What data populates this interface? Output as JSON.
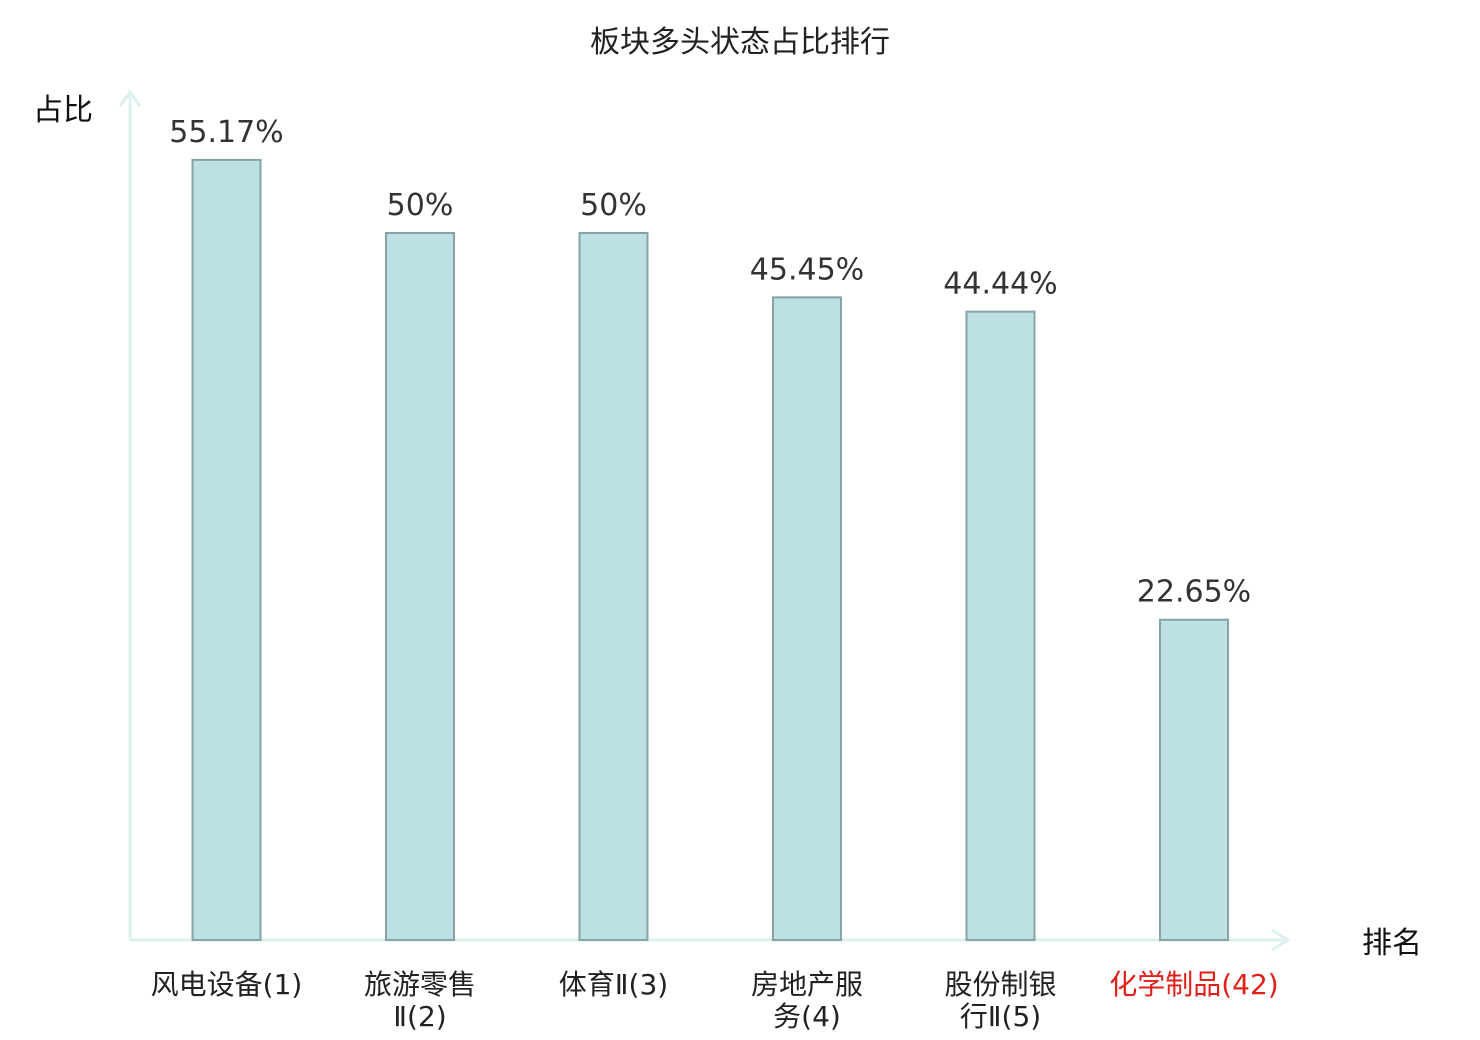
{
  "chart_data": {
    "type": "bar",
    "title": "板块多头状态占比排行",
    "ylabel": "占比",
    "xlabel": "排名",
    "ylim": [
      0,
      60
    ],
    "grid": false,
    "categories": [
      {
        "lines": [
          "风电设备(1)"
        ],
        "highlight": false
      },
      {
        "lines": [
          "旅游零售",
          "Ⅱ(2)"
        ],
        "highlight": false
      },
      {
        "lines": [
          "体育Ⅱ(3)"
        ],
        "highlight": false
      },
      {
        "lines": [
          "房地产服",
          "务(4)"
        ],
        "highlight": false
      },
      {
        "lines": [
          "股份制银",
          "行Ⅱ(5)"
        ],
        "highlight": false
      },
      {
        "lines": [
          "化学制品(42)"
        ],
        "highlight": true
      }
    ],
    "values": [
      55.17,
      50,
      50,
      45.45,
      44.44,
      22.65
    ],
    "value_labels": [
      "55.17%",
      "50%",
      "50%",
      "45.45%",
      "44.44%",
      "22.65%"
    ]
  },
  "colors": {
    "bar_fill": "#bce0e3",
    "bar_stroke": "#86a3a6",
    "axis": "#dcf0ee",
    "highlight_text": "#e0201b"
  }
}
